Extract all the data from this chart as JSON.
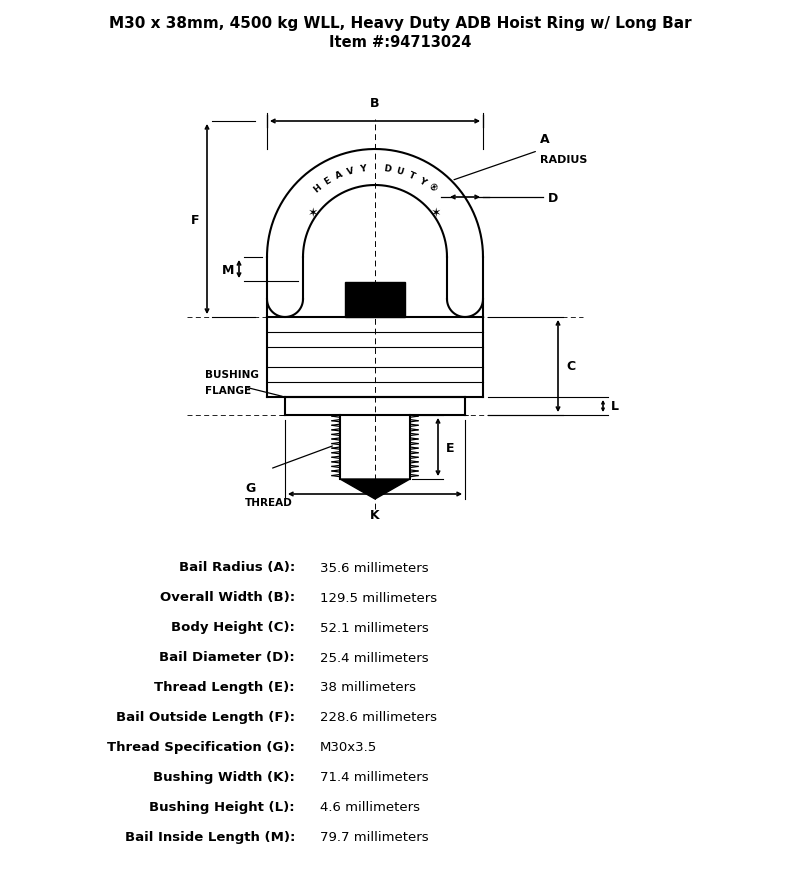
{
  "title_line1": "M30 x 38mm, 4500 kg WLL, Heavy Duty ADB Hoist Ring w/ Long Bar",
  "title_line2": "Item #:94713024",
  "specs": [
    {
      "label": "Bail Radius (A):",
      "value": "35.6 millimeters"
    },
    {
      "label": "Overall Width (B):",
      "value": "129.5 millimeters"
    },
    {
      "label": "Body Height (C):",
      "value": "52.1 millimeters"
    },
    {
      "label": "Bail Diameter (D):",
      "value": "25.4 millimeters"
    },
    {
      "label": "Thread Length (E):",
      "value": "38 millimeters"
    },
    {
      "label": "Bail Outside Length (F):",
      "value": "228.6 millimeters"
    },
    {
      "label": "Thread Specification (G):",
      "value": "M30x3.5"
    },
    {
      "label": "Bushing Width (K):",
      "value": "71.4 millimeters"
    },
    {
      "label": "Bushing Height (L):",
      "value": "4.6 millimeters"
    },
    {
      "label": "Bail Inside Length (M):",
      "value": "79.7 millimeters"
    }
  ],
  "bg_color": "#ffffff",
  "line_color": "#000000"
}
